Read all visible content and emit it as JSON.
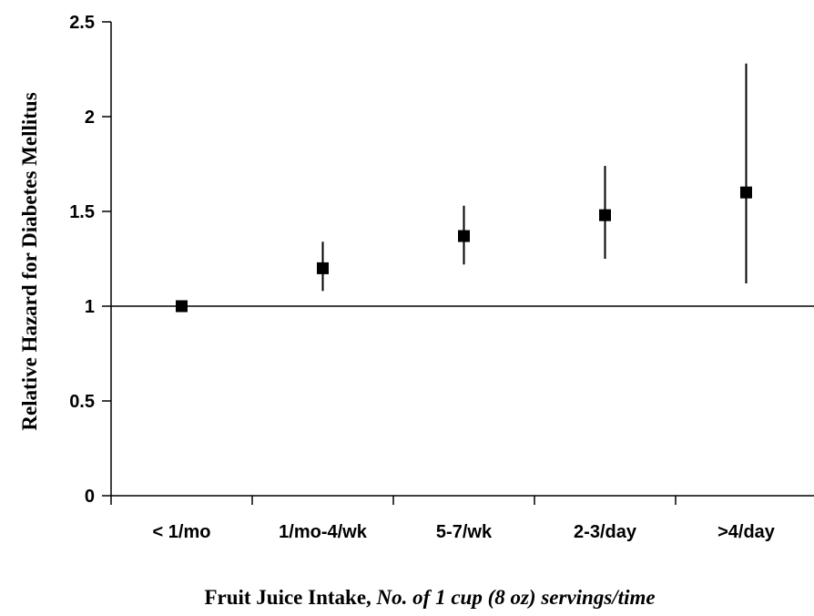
{
  "chart_data": {
    "type": "scatter",
    "title": "",
    "categories": [
      "< 1/mo",
      "1/mo-4/wk",
      "5-7/wk",
      "2-3/day",
      ">4/day"
    ],
    "series": [
      {
        "values": [
          1.0,
          1.2,
          1.37,
          1.48,
          1.6
        ],
        "ci_lower": [
          1.0,
          1.08,
          1.22,
          1.25,
          1.12
        ],
        "ci_upper": [
          1.0,
          1.34,
          1.53,
          1.74,
          2.28
        ]
      }
    ],
    "xlabel": {
      "main": "Fruit Juice Intake,",
      "italic": " No. of 1 cup (8 oz) servings/time"
    },
    "ylabel": "Relative Hazard for Diabetes Mellitus",
    "ylim": [
      0,
      2.5
    ],
    "yticks": [
      "0",
      "0.5",
      "1",
      "1.5",
      "2",
      "2.5"
    ],
    "reference_line": 1,
    "grid": false,
    "legend": "none"
  }
}
